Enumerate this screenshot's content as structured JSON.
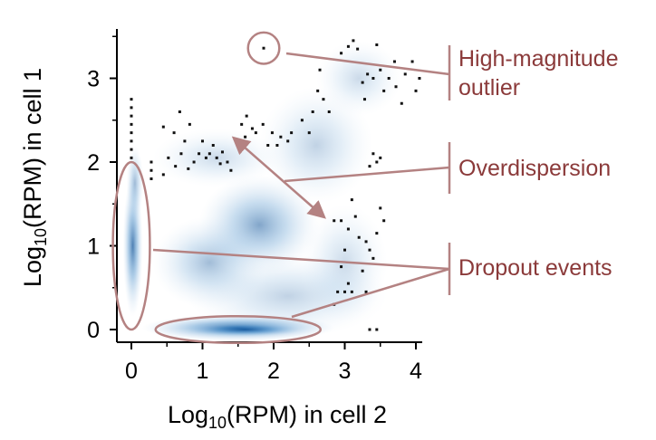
{
  "colors": {
    "annotation_line": "#b48282",
    "annotation_text": "#8b3a3a",
    "density_core": "#0a4f96",
    "density_mid": "#3b86c6",
    "density_light": "#b9d3ec",
    "axis": "#000000",
    "points": "#111111"
  },
  "chart_data": {
    "type": "scatter",
    "xlabel": {
      "prefix": "Log",
      "sub": "10",
      "suffix": "(RPM) in cell 2"
    },
    "ylabel": {
      "prefix": "Log",
      "sub": "10",
      "suffix": "(RPM) in cell 1"
    },
    "xlim": [
      -0.2,
      4.25
    ],
    "ylim": [
      -0.15,
      3.6
    ],
    "xticks": [
      {
        "value": 0,
        "label": "0"
      },
      {
        "value": 1,
        "label": "1"
      },
      {
        "value": 2,
        "label": "2"
      },
      {
        "value": 3,
        "label": "3"
      },
      {
        "value": 4,
        "label": "4"
      }
    ],
    "yticks": [
      {
        "value": 0,
        "label": "0"
      },
      {
        "value": 1,
        "label": "1"
      },
      {
        "value": 2,
        "label": "2"
      },
      {
        "value": 3,
        "label": "3"
      }
    ],
    "density_regions": [
      {
        "cx": 1.5,
        "cy": 0.02,
        "sx": 1.35,
        "sy": 0.16,
        "strength": 1.0
      },
      {
        "cx": 1.6,
        "cy": 0.0,
        "sx": 0.8,
        "sy": 0.08,
        "strength": 1.0
      },
      {
        "cx": 0.02,
        "cy": 1.0,
        "sx": 0.14,
        "sy": 0.85,
        "strength": 0.85
      },
      {
        "cx": 0.05,
        "cy": 1.75,
        "sx": 0.12,
        "sy": 0.45,
        "strength": 0.45
      },
      {
        "cx": 1.8,
        "cy": 1.25,
        "sx": 0.85,
        "sy": 0.6,
        "strength": 0.6
      },
      {
        "cx": 1.1,
        "cy": 0.8,
        "sx": 0.8,
        "sy": 0.55,
        "strength": 0.45
      },
      {
        "cx": 2.6,
        "cy": 2.2,
        "sx": 0.8,
        "sy": 0.7,
        "strength": 0.3
      },
      {
        "cx": 3.2,
        "cy": 3.0,
        "sx": 0.6,
        "sy": 0.45,
        "strength": 0.25
      },
      {
        "cx": 1.2,
        "cy": 2.05,
        "sx": 0.9,
        "sy": 0.35,
        "strength": 0.25
      },
      {
        "cx": 3.0,
        "cy": 0.8,
        "sx": 0.6,
        "sy": 0.7,
        "strength": 0.25
      },
      {
        "cx": 2.2,
        "cy": 0.4,
        "sx": 1.4,
        "sy": 0.5,
        "strength": 0.3
      }
    ],
    "points": [
      {
        "x": 1.86,
        "y": 3.36
      },
      {
        "x": 0.0,
        "y": 2.75
      },
      {
        "x": 0.0,
        "y": 2.65
      },
      {
        "x": 0.0,
        "y": 2.55
      },
      {
        "x": 0.0,
        "y": 2.45
      },
      {
        "x": 0.0,
        "y": 2.35
      },
      {
        "x": 0.0,
        "y": 2.25
      },
      {
        "x": 0.0,
        "y": 2.15
      },
      {
        "x": 0.0,
        "y": 2.05
      },
      {
        "x": 0.28,
        "y": 2.0
      },
      {
        "x": 0.28,
        "y": 1.9
      },
      {
        "x": 0.28,
        "y": 1.8
      },
      {
        "x": 0.45,
        "y": 2.42
      },
      {
        "x": 0.45,
        "y": 1.85
      },
      {
        "x": 0.52,
        "y": 2.05
      },
      {
        "x": 0.6,
        "y": 2.35
      },
      {
        "x": 0.62,
        "y": 1.95
      },
      {
        "x": 0.68,
        "y": 2.6
      },
      {
        "x": 0.7,
        "y": 2.1
      },
      {
        "x": 0.75,
        "y": 2.25
      },
      {
        "x": 0.8,
        "y": 1.92
      },
      {
        "x": 0.82,
        "y": 2.45
      },
      {
        "x": 0.88,
        "y": 2.0
      },
      {
        "x": 0.95,
        "y": 2.1
      },
      {
        "x": 1.0,
        "y": 2.25
      },
      {
        "x": 1.05,
        "y": 2.05
      },
      {
        "x": 1.1,
        "y": 2.1
      },
      {
        "x": 1.15,
        "y": 2.2
      },
      {
        "x": 1.2,
        "y": 2.05
      },
      {
        "x": 1.25,
        "y": 1.98
      },
      {
        "x": 1.28,
        "y": 2.12
      },
      {
        "x": 1.35,
        "y": 2.0
      },
      {
        "x": 1.4,
        "y": 1.9
      },
      {
        "x": 1.55,
        "y": 2.45
      },
      {
        "x": 1.6,
        "y": 2.3
      },
      {
        "x": 1.62,
        "y": 2.55
      },
      {
        "x": 1.7,
        "y": 2.4
      },
      {
        "x": 1.75,
        "y": 2.35
      },
      {
        "x": 1.85,
        "y": 2.45
      },
      {
        "x": 1.92,
        "y": 2.2
      },
      {
        "x": 1.98,
        "y": 2.35
      },
      {
        "x": 2.05,
        "y": 2.2
      },
      {
        "x": 2.1,
        "y": 2.3
      },
      {
        "x": 2.2,
        "y": 2.25
      },
      {
        "x": 2.25,
        "y": 2.35
      },
      {
        "x": 2.4,
        "y": 2.5
      },
      {
        "x": 2.5,
        "y": 2.35
      },
      {
        "x": 2.55,
        "y": 2.6
      },
      {
        "x": 2.62,
        "y": 2.85
      },
      {
        "x": 2.65,
        "y": 3.1
      },
      {
        "x": 2.7,
        "y": 2.75
      },
      {
        "x": 2.78,
        "y": 2.6
      },
      {
        "x": 2.95,
        "y": 3.3
      },
      {
        "x": 3.05,
        "y": 3.38
      },
      {
        "x": 3.12,
        "y": 3.45
      },
      {
        "x": 3.18,
        "y": 3.35
      },
      {
        "x": 3.25,
        "y": 2.95
      },
      {
        "x": 3.28,
        "y": 2.75
      },
      {
        "x": 3.32,
        "y": 3.05
      },
      {
        "x": 3.4,
        "y": 3.0
      },
      {
        "x": 3.45,
        "y": 3.4
      },
      {
        "x": 3.5,
        "y": 3.1
      },
      {
        "x": 3.55,
        "y": 2.85
      },
      {
        "x": 3.62,
        "y": 3.0
      },
      {
        "x": 3.7,
        "y": 3.2
      },
      {
        "x": 3.72,
        "y": 2.9
      },
      {
        "x": 3.8,
        "y": 2.7
      },
      {
        "x": 3.85,
        "y": 3.05
      },
      {
        "x": 3.95,
        "y": 3.2
      },
      {
        "x": 4.0,
        "y": 2.85
      },
      {
        "x": 4.05,
        "y": 3.0
      },
      {
        "x": 3.35,
        "y": 1.95
      },
      {
        "x": 3.4,
        "y": 2.1
      },
      {
        "x": 3.45,
        "y": 2.0
      },
      {
        "x": 3.5,
        "y": 2.05
      },
      {
        "x": 2.85,
        "y": 1.3
      },
      {
        "x": 2.95,
        "y": 1.3
      },
      {
        "x": 3.05,
        "y": 1.2
      },
      {
        "x": 3.1,
        "y": 1.55
      },
      {
        "x": 3.15,
        "y": 1.35
      },
      {
        "x": 3.2,
        "y": 1.1
      },
      {
        "x": 3.3,
        "y": 1.05
      },
      {
        "x": 3.35,
        "y": 0.95
      },
      {
        "x": 3.4,
        "y": 0.85
      },
      {
        "x": 3.45,
        "y": 1.15
      },
      {
        "x": 3.5,
        "y": 1.45
      },
      {
        "x": 3.55,
        "y": 1.3
      },
      {
        "x": 3.0,
        "y": 0.95
      },
      {
        "x": 2.95,
        "y": 0.75
      },
      {
        "x": 3.05,
        "y": 0.55
      },
      {
        "x": 2.9,
        "y": 0.45
      },
      {
        "x": 3.0,
        "y": 0.45
      },
      {
        "x": 3.1,
        "y": 0.45
      },
      {
        "x": 2.85,
        "y": 0.3
      },
      {
        "x": 3.35,
        "y": 0.0
      },
      {
        "x": 3.45,
        "y": 0.0
      },
      {
        "x": 3.3,
        "y": 0.45
      },
      {
        "x": 3.25,
        "y": 0.7
      }
    ],
    "annotations": [
      {
        "label_lines": [
          "High-magnitude",
          "outlier"
        ],
        "marker": {
          "type": "circle",
          "cx": 1.86,
          "cy": 3.36,
          "r": 0.22
        }
      },
      {
        "label_lines": [
          "Overdispersion"
        ],
        "arrow": {
          "x1": 1.45,
          "y1": 2.28,
          "x2": 2.7,
          "y2": 1.35
        }
      },
      {
        "label_lines": [
          "Dropout events"
        ],
        "markers": [
          {
            "type": "ellipse",
            "cx": 0.0,
            "cy": 1.0,
            "rx": 0.26,
            "ry": 1.0
          },
          {
            "type": "ellipse",
            "cx": 1.5,
            "cy": 0.0,
            "rx": 1.16,
            "ry": 0.16
          }
        ]
      }
    ]
  }
}
